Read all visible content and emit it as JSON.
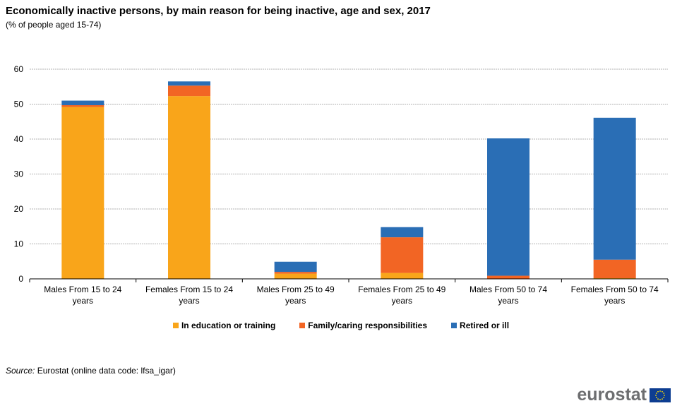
{
  "title": "Economically inactive persons, by main reason for being inactive, age and sex, 2017",
  "subtitle": "(% of people aged 15-74)",
  "chart_data": {
    "type": "bar",
    "stacked": true,
    "categories": [
      [
        "Males From 15 to 24",
        "years"
      ],
      [
        "Females From 15 to 24",
        "years"
      ],
      [
        "Males From 25 to 49",
        "years"
      ],
      [
        "Females From 25 to 49",
        "years"
      ],
      [
        "Males From 50 to 74",
        "years"
      ],
      [
        "Females From 50 to 74",
        "years"
      ]
    ],
    "series": [
      {
        "name": "In education or training",
        "color": "#f9a51a",
        "values": [
          49.2,
          52.3,
          1.5,
          1.7,
          0.1,
          0.2
        ]
      },
      {
        "name": "Family/caring responsibilities",
        "color": "#f26524",
        "values": [
          0.5,
          3.0,
          0.5,
          10.2,
          0.8,
          5.3
        ]
      },
      {
        "name": "Retired or ill",
        "color": "#2a6eb5",
        "values": [
          1.3,
          1.2,
          2.9,
          2.9,
          39.3,
          40.6
        ]
      }
    ],
    "ylim": [
      0,
      60
    ],
    "yticks": [
      0,
      10,
      20,
      30,
      40,
      50,
      60
    ],
    "grid": true,
    "legend_position": "bottom"
  },
  "source": {
    "label": "Source:",
    "text": "Eurostat (online data code: lfsa_igar)"
  },
  "logo": {
    "word": "eurostat",
    "flag_color": "#0d3d91",
    "star_color": "#ffdd00"
  }
}
